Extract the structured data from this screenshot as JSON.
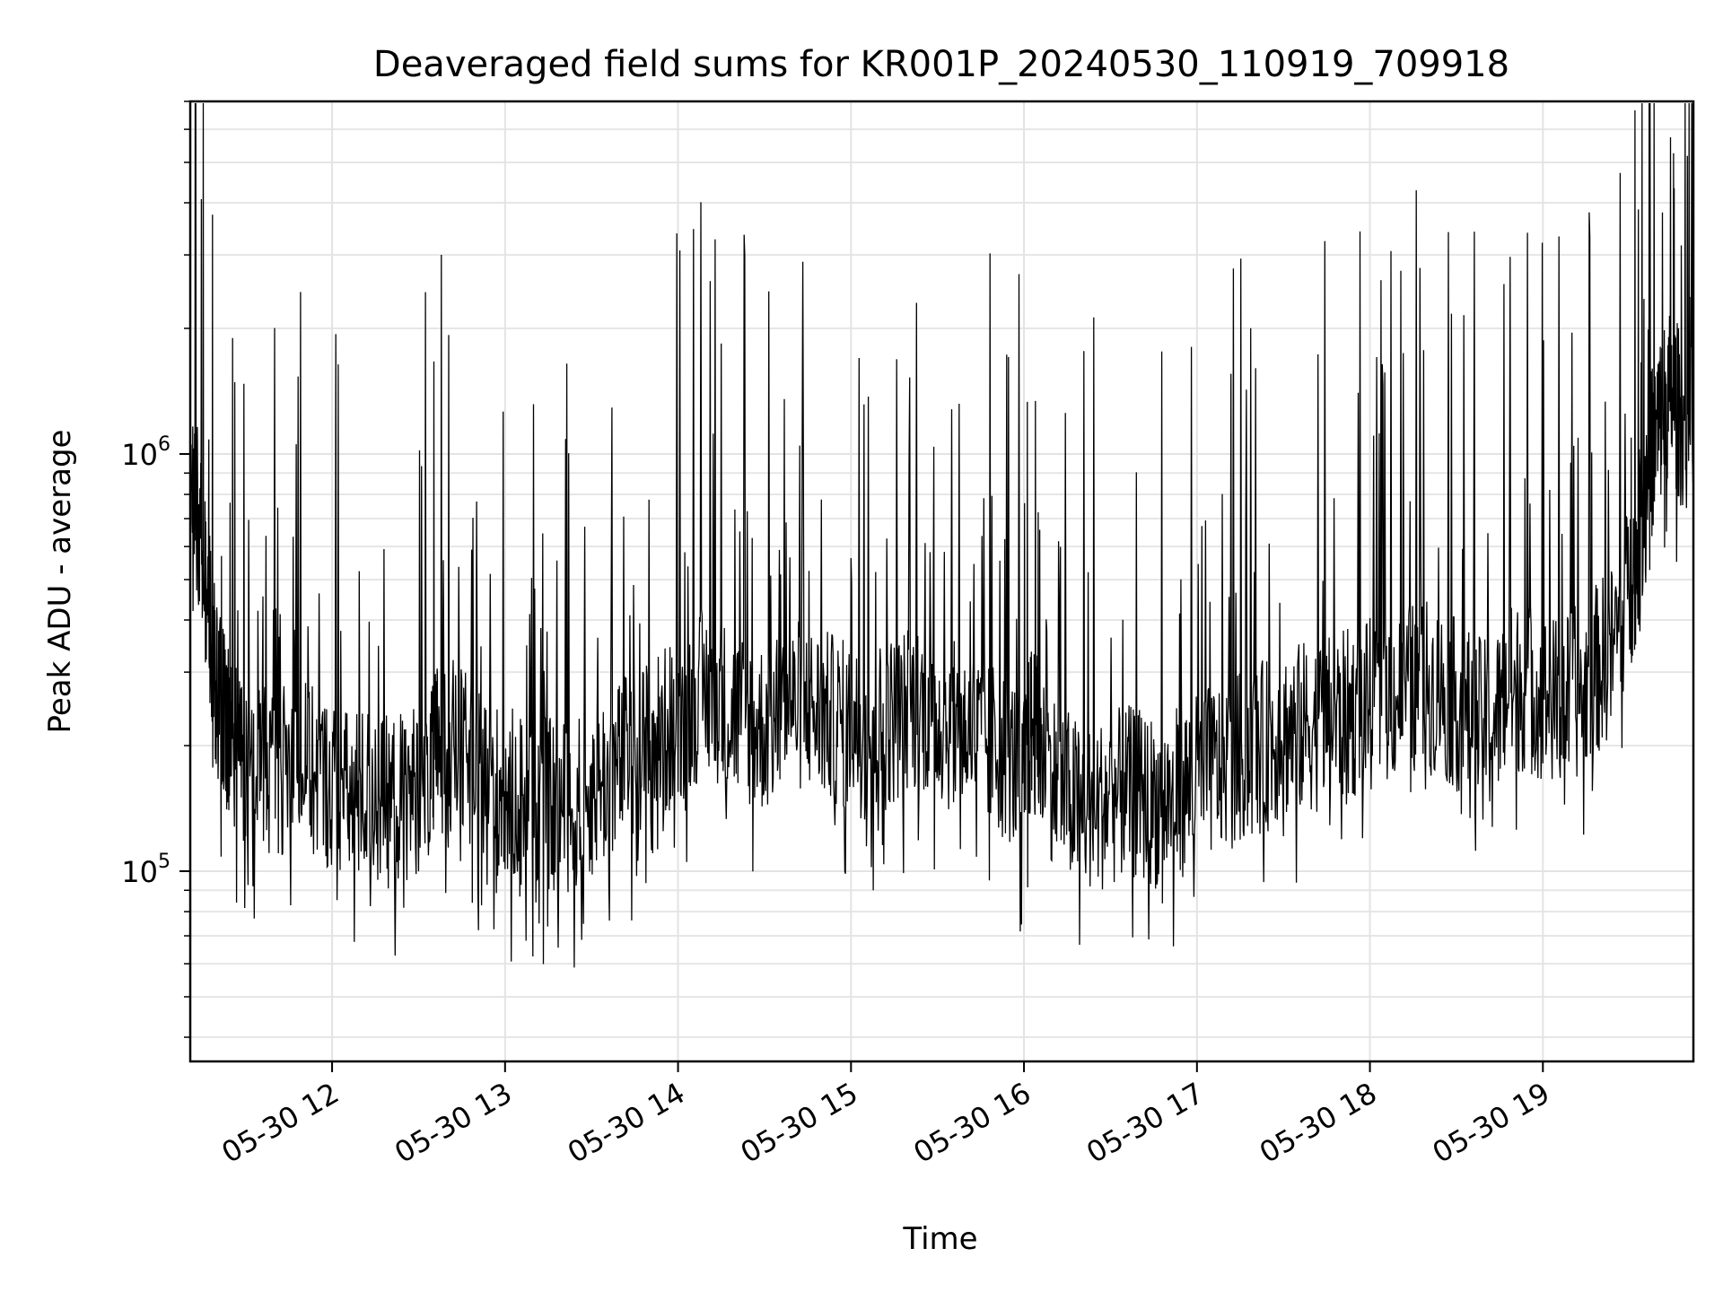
{
  "chart_data": {
    "type": "line",
    "title": "Deaveraged field sums for KR001P_20240530_110919_709918",
    "xlabel": "Time",
    "ylabel": "Peak ADU - average",
    "x_unit": "time of day (hours), 2024-05-30",
    "xlim": [
      11.18,
      19.87
    ],
    "ylim": [
      35000,
      7000000
    ],
    "yscale": "log",
    "grid": true,
    "legend": "none",
    "line_color": "#000000",
    "x_ticks": [
      {
        "value": 12,
        "label": "05-30 12"
      },
      {
        "value": 13,
        "label": "05-30 13"
      },
      {
        "value": 14,
        "label": "05-30 14"
      },
      {
        "value": 15,
        "label": "05-30 15"
      },
      {
        "value": 16,
        "label": "05-30 16"
      },
      {
        "value": 17,
        "label": "05-30 17"
      },
      {
        "value": 18,
        "label": "05-30 18"
      },
      {
        "value": 19,
        "label": "05-30 19"
      }
    ],
    "y_ticks": [
      {
        "value": 100000,
        "base": "10",
        "exp": "5"
      },
      {
        "value": 1000000,
        "base": "10",
        "exp": "6"
      }
    ],
    "series": [
      {
        "x": [
          11.18,
          11.23,
          11.28,
          11.33,
          11.38,
          11.43,
          11.5,
          11.6,
          11.7,
          11.8,
          11.9,
          12.0,
          12.1,
          12.2,
          12.3,
          12.4,
          12.5,
          12.58,
          12.62,
          12.7,
          12.8,
          12.9,
          13.0,
          13.1,
          13.2,
          13.3,
          13.4,
          13.5,
          13.6,
          13.7,
          13.8,
          13.9,
          14.0,
          14.1,
          14.2,
          14.3,
          14.4,
          14.5,
          14.6,
          14.7,
          14.8,
          14.9,
          15.0,
          15.1,
          15.2,
          15.3,
          15.4,
          15.5,
          15.6,
          15.7,
          15.8,
          15.9,
          16.0,
          16.05,
          16.1,
          16.2,
          16.3,
          16.4,
          16.5,
          16.6,
          16.7,
          16.8,
          16.9,
          17.0,
          17.1,
          17.2,
          17.3,
          17.4,
          17.5,
          17.6,
          17.7,
          17.8,
          17.9,
          18.0,
          18.1,
          18.2,
          18.3,
          18.4,
          18.5,
          18.6,
          18.7,
          18.8,
          18.9,
          19.0,
          19.1,
          19.2,
          19.3,
          19.4,
          19.5,
          19.55,
          19.6,
          19.65,
          19.7,
          19.75,
          19.8,
          19.87
        ],
        "y": [
          900000,
          700000,
          450000,
          280000,
          230000,
          200000,
          190000,
          180000,
          175000,
          185000,
          170000,
          160000,
          150000,
          155000,
          145000,
          150000,
          160000,
          170000,
          220000,
          200000,
          180000,
          165000,
          150000,
          155000,
          150000,
          140000,
          145000,
          155000,
          170000,
          185000,
          200000,
          210000,
          230000,
          260000,
          270000,
          240000,
          230000,
          220000,
          235000,
          250000,
          240000,
          230000,
          220000,
          215000,
          225000,
          240000,
          250000,
          235000,
          220000,
          215000,
          200000,
          190000,
          170000,
          230000,
          190000,
          160000,
          145000,
          140000,
          150000,
          155000,
          150000,
          145000,
          155000,
          165000,
          175000,
          185000,
          190000,
          200000,
          215000,
          220000,
          225000,
          230000,
          240000,
          250000,
          260000,
          270000,
          280000,
          270000,
          250000,
          230000,
          220000,
          270000,
          280000,
          260000,
          250000,
          270000,
          300000,
          340000,
          480000,
          600000,
          900000,
          1100000,
          1300000,
          1400000,
          1200000,
          1150000
        ]
      }
    ]
  }
}
